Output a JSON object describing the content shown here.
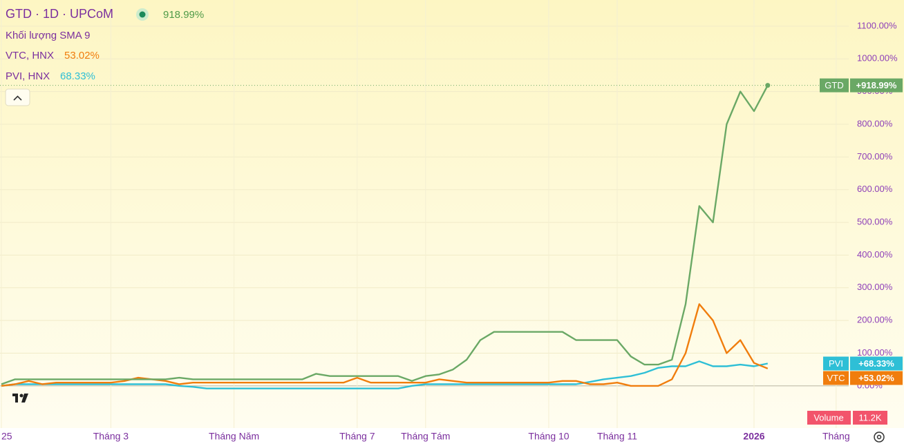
{
  "chart_data": {
    "type": "line",
    "title": "GTD · 1D · UPCoM",
    "subtitle": "Khối lượng SMA 9",
    "categories": [
      "25",
      null,
      null,
      null,
      null,
      null,
      null,
      null,
      "Tháng 3",
      null,
      null,
      null,
      null,
      null,
      null,
      null,
      null,
      "Tháng Năm",
      null,
      null,
      null,
      null,
      null,
      null,
      null,
      null,
      "Tháng 7",
      null,
      null,
      null,
      null,
      "Tháng Tám",
      null,
      null,
      null,
      null,
      null,
      null,
      null,
      null,
      "Tháng 10",
      null,
      null,
      null,
      null,
      "Tháng 11",
      null,
      null,
      null,
      null,
      null,
      null,
      null,
      null,
      null,
      "2026",
      null,
      null,
      null,
      null,
      null,
      "Tháng"
    ],
    "series": [
      {
        "name": "GTD",
        "legend": "GTD · 1D · UPCoM",
        "legend_value": "918.99%",
        "last_label": "+918.99%",
        "color": "#6aa865",
        "values": [
          5,
          20,
          20,
          20,
          20,
          20,
          20,
          20,
          20,
          20,
          20,
          20,
          20,
          25,
          20,
          20,
          20,
          20,
          20,
          20,
          20,
          20,
          20,
          37,
          30,
          30,
          30,
          30,
          30,
          30,
          15,
          30,
          35,
          50,
          80,
          140,
          165,
          165,
          165,
          165,
          165,
          165,
          140,
          140,
          140,
          140,
          90,
          65,
          65,
          80,
          250,
          550,
          500,
          800,
          900,
          840,
          918.99,
          null,
          null,
          null,
          null,
          null
        ]
      },
      {
        "name": "VTC",
        "legend": "VTC, HNX",
        "legend_value": "53.02%",
        "last_label": "+53.02%",
        "color": "#f07d0d",
        "values": [
          0,
          5,
          15,
          5,
          10,
          10,
          10,
          10,
          10,
          15,
          25,
          20,
          15,
          5,
          10,
          10,
          10,
          10,
          10,
          10,
          10,
          10,
          10,
          10,
          10,
          10,
          25,
          10,
          10,
          10,
          10,
          10,
          20,
          15,
          10,
          10,
          10,
          10,
          10,
          10,
          10,
          15,
          15,
          5,
          5,
          10,
          0,
          0,
          0,
          20,
          100,
          250,
          200,
          100,
          140,
          70,
          53.02,
          null,
          null,
          null,
          null,
          null
        ]
      },
      {
        "name": "PVI",
        "legend": "PVI, HNX",
        "legend_value": "68.33%",
        "last_label": "+68.33%",
        "color": "#2ebfd6",
        "values": [
          0,
          5,
          5,
          5,
          5,
          5,
          5,
          5,
          5,
          5,
          5,
          5,
          5,
          0,
          -3,
          -8,
          -8,
          -8,
          -8,
          -8,
          -8,
          -8,
          -8,
          -8,
          -8,
          -8,
          -8,
          -8,
          -8,
          -8,
          0,
          5,
          5,
          5,
          5,
          5,
          5,
          5,
          5,
          5,
          5,
          5,
          5,
          12,
          20,
          25,
          30,
          40,
          55,
          60,
          60,
          75,
          60,
          60,
          65,
          60,
          68.33,
          null,
          null,
          null,
          null,
          null
        ]
      }
    ],
    "ylim": [
      -129,
      1180
    ],
    "yticks": [
      {
        "value": 0,
        "label": "0.00%"
      },
      {
        "value": 100,
        "label": "100.00%"
      },
      {
        "value": 200,
        "label": "200.00%"
      },
      {
        "value": 300,
        "label": "300.00%"
      },
      {
        "value": 400,
        "label": "400.00%"
      },
      {
        "value": 500,
        "label": "500.00%"
      },
      {
        "value": 600,
        "label": "600.00%"
      },
      {
        "value": 700,
        "label": "700.00%"
      },
      {
        "value": 800,
        "label": "800.00%"
      },
      {
        "value": 900,
        "label": "900.00%"
      },
      {
        "value": 1000,
        "label": "1000.00%"
      },
      {
        "value": 1100,
        "label": "1100.00%"
      }
    ],
    "grid": true,
    "volume": {
      "name": "Volume",
      "value": 11200,
      "value_label": "11.2K",
      "color": "#f2546b"
    }
  }
}
